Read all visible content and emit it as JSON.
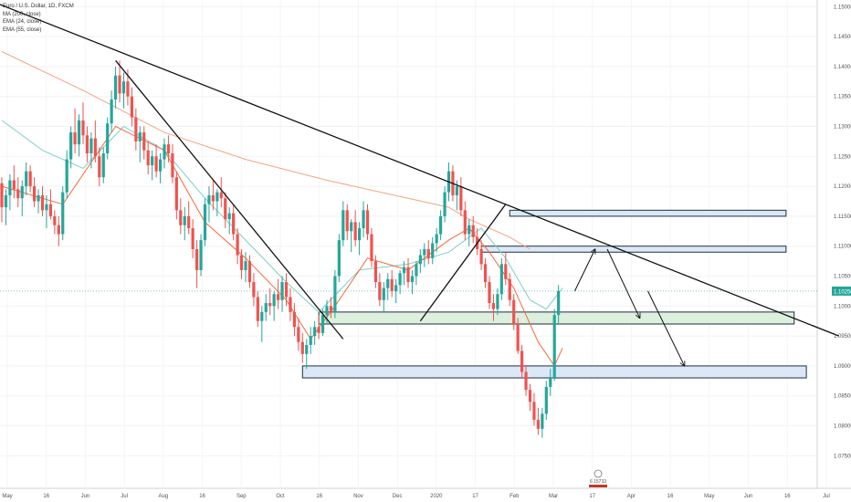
{
  "legend": {
    "symbol": "Euro / U.S. Dollar, 1D, FXCM",
    "ma200": "MA (200, close)",
    "ema24": "EMA (24, close)",
    "ema55": "EMA (55, close)"
  },
  "watermark": "6 15733",
  "colors": {
    "up": "#26a69a",
    "down": "#ef5350",
    "ma200": "#f4a582",
    "ema24": "#f26b3a",
    "ema55": "#7fcfc9",
    "box_blue": "#dbe9f7",
    "box_green": "#ddf0dd",
    "price_tag": "#26a69a"
  },
  "chart_data": {
    "type": "candlestick",
    "title": "Euro / U.S. Dollar, 1D, FXCM",
    "ylim": [
      1.072,
      1.1505
    ],
    "y_ticks": [
      "1.15000",
      "1.14500",
      "1.14000",
      "1.13500",
      "1.13000",
      "1.12500",
      "1.12000",
      "1.11500",
      "1.11000",
      "1.10500",
      "1.10000",
      "1.09500",
      "1.09000",
      "1.08500",
      "1.08000",
      "1.07500"
    ],
    "x_ticks": [
      "May",
      "16",
      "Jun",
      "Jul",
      "Aug",
      "16",
      "Sep",
      "Oct",
      "16",
      "Nov",
      "Dec",
      "2020",
      "17",
      "Feb",
      "Mar",
      "17",
      "Apr",
      "16",
      "May",
      "Jun",
      "16",
      "Jul"
    ],
    "last_price": "1.10250",
    "candles": [
      [
        1.1205,
        1.1215,
        1.114,
        1.1165
      ],
      [
        1.1165,
        1.1195,
        1.1135,
        1.1185
      ],
      [
        1.1185,
        1.122,
        1.116,
        1.121
      ],
      [
        1.121,
        1.1235,
        1.118,
        1.1195
      ],
      [
        1.1195,
        1.1215,
        1.1165,
        1.118
      ],
      [
        1.118,
        1.121,
        1.115,
        1.12
      ],
      [
        1.12,
        1.124,
        1.1185,
        1.1225
      ],
      [
        1.1225,
        1.1235,
        1.119,
        1.12
      ],
      [
        1.12,
        1.1215,
        1.1165,
        1.1175
      ],
      [
        1.1175,
        1.1195,
        1.1155,
        1.1185
      ],
      [
        1.1185,
        1.12,
        1.115,
        1.116
      ],
      [
        1.116,
        1.1185,
        1.113,
        1.117
      ],
      [
        1.117,
        1.1195,
        1.1145,
        1.115
      ],
      [
        1.115,
        1.116,
        1.112,
        1.1135
      ],
      [
        1.1135,
        1.115,
        1.11,
        1.112
      ],
      [
        1.112,
        1.12,
        1.111,
        1.119
      ],
      [
        1.119,
        1.126,
        1.118,
        1.1245
      ],
      [
        1.1245,
        1.13,
        1.123,
        1.129
      ],
      [
        1.129,
        1.133,
        1.1255,
        1.127
      ],
      [
        1.127,
        1.132,
        1.125,
        1.131
      ],
      [
        1.131,
        1.134,
        1.127,
        1.1285
      ],
      [
        1.1285,
        1.13,
        1.124,
        1.1255
      ],
      [
        1.1255,
        1.129,
        1.123,
        1.128
      ],
      [
        1.128,
        1.131,
        1.124,
        1.125
      ],
      [
        1.125,
        1.1265,
        1.12,
        1.1215
      ],
      [
        1.1215,
        1.1265,
        1.1205,
        1.1255
      ],
      [
        1.1255,
        1.1315,
        1.1245,
        1.1305
      ],
      [
        1.1305,
        1.136,
        1.129,
        1.1345
      ],
      [
        1.1345,
        1.14,
        1.133,
        1.1385
      ],
      [
        1.1385,
        1.141,
        1.134,
        1.1355
      ],
      [
        1.1355,
        1.139,
        1.133,
        1.1375
      ],
      [
        1.1375,
        1.1395,
        1.1335,
        1.135
      ],
      [
        1.135,
        1.1365,
        1.13,
        1.1315
      ],
      [
        1.1315,
        1.133,
        1.126,
        1.1275
      ],
      [
        1.1275,
        1.13,
        1.124,
        1.129
      ],
      [
        1.129,
        1.13,
        1.1245,
        1.126
      ],
      [
        1.126,
        1.1275,
        1.122,
        1.1235
      ],
      [
        1.1235,
        1.126,
        1.121,
        1.125
      ],
      [
        1.125,
        1.127,
        1.1215,
        1.1225
      ],
      [
        1.1225,
        1.1255,
        1.1205,
        1.1245
      ],
      [
        1.1245,
        1.128,
        1.123,
        1.127
      ],
      [
        1.127,
        1.1285,
        1.124,
        1.1255
      ],
      [
        1.1255,
        1.127,
        1.1205,
        1.1215
      ],
      [
        1.1215,
        1.1225,
        1.1145,
        1.116
      ],
      [
        1.116,
        1.118,
        1.112,
        1.1135
      ],
      [
        1.1135,
        1.1165,
        1.111,
        1.115
      ],
      [
        1.115,
        1.1175,
        1.112,
        1.113
      ],
      [
        1.113,
        1.1145,
        1.108,
        1.1095
      ],
      [
        1.1095,
        1.111,
        1.103,
        1.106
      ],
      [
        1.106,
        1.112,
        1.105,
        1.111
      ],
      [
        1.111,
        1.118,
        1.11,
        1.117
      ],
      [
        1.117,
        1.12,
        1.114,
        1.1185
      ],
      [
        1.1185,
        1.121,
        1.116,
        1.1175
      ],
      [
        1.1175,
        1.1195,
        1.115,
        1.119
      ],
      [
        1.119,
        1.1215,
        1.1165,
        1.118
      ],
      [
        1.118,
        1.119,
        1.113,
        1.1145
      ],
      [
        1.1145,
        1.1165,
        1.112,
        1.1155
      ],
      [
        1.1155,
        1.117,
        1.111,
        1.112
      ],
      [
        1.112,
        1.113,
        1.107,
        1.1085
      ],
      [
        1.1085,
        1.1095,
        1.1045,
        1.106
      ],
      [
        1.106,
        1.109,
        1.104,
        1.1075
      ],
      [
        1.1075,
        1.1085,
        1.103,
        1.104
      ],
      [
        1.104,
        1.1055,
        1.1,
        1.1015
      ],
      [
        1.1015,
        1.1025,
        1.0965,
        1.0975
      ],
      [
        1.0975,
        1.1,
        1.094,
        1.099
      ],
      [
        1.099,
        1.102,
        1.0975,
        1.1005
      ],
      [
        1.1005,
        1.103,
        1.0985,
        1.1
      ],
      [
        1.1,
        1.1025,
        1.0975,
        1.102
      ],
      [
        1.102,
        1.1045,
        1.0995,
        1.101
      ],
      [
        1.101,
        1.105,
        1.099,
        1.104
      ],
      [
        1.104,
        1.1055,
        1.1,
        1.1015
      ],
      [
        1.1015,
        1.103,
        1.0975,
        1.099
      ],
      [
        1.099,
        1.1005,
        1.095,
        1.0965
      ],
      [
        1.0965,
        1.098,
        1.0925,
        1.094
      ],
      [
        1.094,
        1.0955,
        1.0905,
        1.092
      ],
      [
        1.092,
        1.0945,
        1.0895,
        1.0935
      ],
      [
        1.0935,
        1.0965,
        1.092,
        1.095
      ],
      [
        1.095,
        1.0975,
        1.0935,
        1.0965
      ],
      [
        1.0965,
        1.0985,
        1.0945,
        1.0955
      ],
      [
        1.0955,
        1.0995,
        1.095,
        1.0985
      ],
      [
        1.0985,
        1.101,
        1.097,
        1.1
      ],
      [
        1.1,
        1.1015,
        1.098,
        1.099
      ],
      [
        1.099,
        1.106,
        1.098,
        1.105
      ],
      [
        1.105,
        1.112,
        1.104,
        1.111
      ],
      [
        1.111,
        1.1175,
        1.11,
        1.116
      ],
      [
        1.116,
        1.117,
        1.111,
        1.1125
      ],
      [
        1.1125,
        1.1145,
        1.109,
        1.114
      ],
      [
        1.114,
        1.116,
        1.11,
        1.111
      ],
      [
        1.111,
        1.114,
        1.1085,
        1.113
      ],
      [
        1.113,
        1.1175,
        1.1115,
        1.116
      ],
      [
        1.116,
        1.117,
        1.111,
        1.112
      ],
      [
        1.112,
        1.113,
        1.1065,
        1.1075
      ],
      [
        1.1075,
        1.1085,
        1.103,
        1.104
      ],
      [
        1.104,
        1.1055,
        1.1,
        1.101
      ],
      [
        1.101,
        1.104,
        1.099,
        1.103
      ],
      [
        1.103,
        1.1055,
        1.101,
        1.1045
      ],
      [
        1.1045,
        1.106,
        1.1015,
        1.1025
      ],
      [
        1.1025,
        1.1045,
        1.1005,
        1.1035
      ],
      [
        1.1035,
        1.106,
        1.102,
        1.1055
      ],
      [
        1.1055,
        1.1075,
        1.1035,
        1.1065
      ],
      [
        1.1065,
        1.108,
        1.103,
        1.104
      ],
      [
        1.104,
        1.106,
        1.102,
        1.105
      ],
      [
        1.105,
        1.1075,
        1.1035,
        1.107
      ],
      [
        1.107,
        1.1095,
        1.1055,
        1.1085
      ],
      [
        1.1085,
        1.1105,
        1.1065,
        1.1095
      ],
      [
        1.1095,
        1.111,
        1.107,
        1.108
      ],
      [
        1.108,
        1.1115,
        1.107,
        1.1105
      ],
      [
        1.1105,
        1.113,
        1.109,
        1.112
      ],
      [
        1.112,
        1.116,
        1.111,
        1.115
      ],
      [
        1.115,
        1.12,
        1.114,
        1.119
      ],
      [
        1.119,
        1.124,
        1.1175,
        1.1225
      ],
      [
        1.1225,
        1.1235,
        1.1175,
        1.1185
      ],
      [
        1.1185,
        1.121,
        1.116,
        1.12
      ],
      [
        1.12,
        1.1215,
        1.115,
        1.116
      ],
      [
        1.116,
        1.1175,
        1.111,
        1.112
      ],
      [
        1.112,
        1.1145,
        1.11,
        1.1135
      ],
      [
        1.1135,
        1.115,
        1.1105,
        1.1115
      ],
      [
        1.1115,
        1.113,
        1.1085,
        1.1095
      ],
      [
        1.1095,
        1.111,
        1.106,
        1.107
      ],
      [
        1.107,
        1.108,
        1.103,
        1.104
      ],
      [
        1.104,
        1.105,
        1.0995,
        1.1005
      ],
      [
        1.1005,
        1.102,
        1.0975,
        1.0995
      ],
      [
        1.0995,
        1.103,
        1.0985,
        1.102
      ],
      [
        1.102,
        1.108,
        1.101,
        1.107
      ],
      [
        1.107,
        1.109,
        1.1035,
        1.1045
      ],
      [
        1.1045,
        1.1055,
        1.1,
        1.101
      ],
      [
        1.101,
        1.102,
        1.096,
        1.097
      ],
      [
        1.097,
        1.098,
        1.092,
        1.0925
      ],
      [
        1.0925,
        1.0935,
        1.088,
        1.089
      ],
      [
        1.089,
        1.09,
        1.085,
        1.086
      ],
      [
        1.086,
        1.087,
        1.0825,
        1.084
      ],
      [
        1.084,
        1.0855,
        1.08,
        1.081
      ],
      [
        1.081,
        1.083,
        1.0785,
        1.0795
      ],
      [
        1.0795,
        1.083,
        1.078,
        1.082
      ],
      [
        1.082,
        1.0875,
        1.081,
        1.0865
      ],
      [
        1.0865,
        1.0895,
        1.085,
        1.088
      ],
      [
        1.088,
        1.0995,
        1.0875,
        1.0985
      ],
      [
        1.0985,
        1.1035,
        1.097,
        1.1025
      ]
    ],
    "ma200": [
      [
        0,
        1.1425
      ],
      [
        20,
        1.136
      ],
      [
        40,
        1.129
      ],
      [
        60,
        1.1245
      ],
      [
        80,
        1.121
      ],
      [
        100,
        1.118
      ],
      [
        110,
        1.1165
      ],
      [
        115,
        1.1145
      ],
      [
        125,
        1.1115
      ],
      [
        130,
        1.1095
      ]
    ],
    "ema24": [
      [
        0,
        1.12
      ],
      [
        15,
        1.117
      ],
      [
        28,
        1.13
      ],
      [
        40,
        1.126
      ],
      [
        50,
        1.114
      ],
      [
        60,
        1.108
      ],
      [
        70,
        1.101
      ],
      [
        76,
        1.0945
      ],
      [
        82,
        1.1
      ],
      [
        90,
        1.108
      ],
      [
        100,
        1.106
      ],
      [
        110,
        1.111
      ],
      [
        115,
        1.113
      ],
      [
        120,
        1.109
      ],
      [
        126,
        1.103
      ],
      [
        132,
        1.094
      ],
      [
        136,
        1.09
      ],
      [
        138,
        1.093
      ]
    ],
    "ema55": [
      [
        0,
        1.131
      ],
      [
        10,
        1.126
      ],
      [
        20,
        1.123
      ],
      [
        30,
        1.13
      ],
      [
        40,
        1.126
      ],
      [
        50,
        1.118
      ],
      [
        60,
        1.111
      ],
      [
        70,
        1.104
      ],
      [
        78,
        1.099
      ],
      [
        88,
        1.106
      ],
      [
        100,
        1.107
      ],
      [
        110,
        1.109
      ],
      [
        118,
        1.113
      ],
      [
        124,
        1.108
      ],
      [
        130,
        1.101
      ],
      [
        134,
        1.0995
      ],
      [
        138,
        1.103
      ]
    ],
    "zones": [
      {
        "label": "resistance-upper",
        "y_top": 1.116,
        "y_bottom": 1.115,
        "x_from": 125,
        "x_to": 193,
        "fill": "blue"
      },
      {
        "label": "resistance-lower",
        "y_top": 1.11,
        "y_bottom": 1.109,
        "x_from": 118,
        "x_to": 193,
        "fill": "blue"
      },
      {
        "label": "support-green",
        "y_top": 1.099,
        "y_bottom": 1.097,
        "x_from": 78,
        "x_to": 195,
        "fill": "green"
      },
      {
        "label": "support-blue",
        "y_top": 1.09,
        "y_bottom": 1.088,
        "x_from": 74,
        "x_to": 198,
        "fill": "blue"
      }
    ],
    "trendlines": [
      {
        "from": [
          -1,
          1.1505
        ],
        "to": [
          206,
          1.095
        ]
      },
      {
        "from": [
          28,
          1.141
        ],
        "to": [
          84,
          1.0945
        ]
      },
      {
        "from": [
          103,
          1.0975
        ],
        "to": [
          124,
          1.117
        ]
      }
    ],
    "arrows": [
      {
        "from": [
          141,
          1.1025
        ],
        "to": [
          146,
          1.1095
        ]
      },
      {
        "from": [
          149,
          1.1095
        ],
        "to": [
          157,
          1.098
        ]
      },
      {
        "from": [
          159,
          1.1025
        ],
        "to": [
          168,
          1.09
        ]
      }
    ]
  }
}
